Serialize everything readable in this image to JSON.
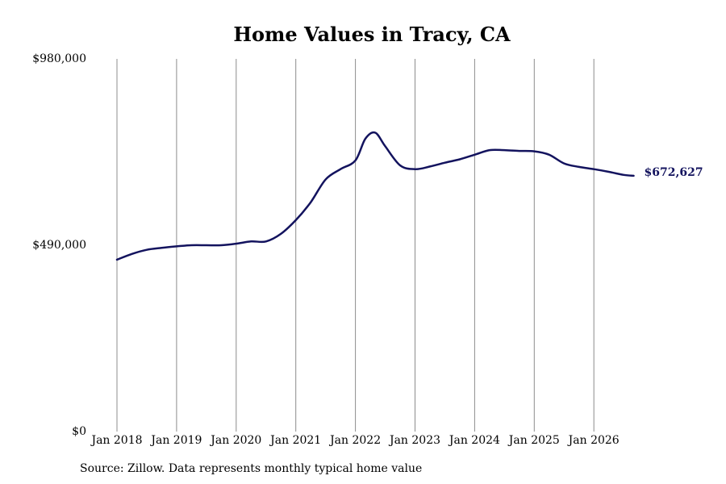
{
  "chart_data": {
    "type": "line",
    "title": "Home Values in Tracy, CA",
    "xlabel": "",
    "ylabel": "",
    "ylim": [
      0,
      980000
    ],
    "y_ticks": [
      0,
      490000,
      980000
    ],
    "y_tick_labels": [
      "$0",
      "$490,000",
      "$980,000"
    ],
    "x_ticks": [
      "2018-01",
      "2019-01",
      "2020-01",
      "2021-01",
      "2022-01",
      "2023-01",
      "2024-01",
      "2025-01",
      "2026-01"
    ],
    "x_tick_labels": [
      "Jan 2018",
      "Jan 2019",
      "Jan 2020",
      "Jan 2021",
      "Jan 2022",
      "Jan 2023",
      "Jan 2024",
      "Jan 2025",
      "Jan 2026"
    ],
    "grid": "vertical",
    "line_color": "#13135e",
    "end_label": "$672,627",
    "series": [
      {
        "x": [
          "2018-01",
          "2018-04",
          "2018-07",
          "2018-10",
          "2019-01",
          "2019-04",
          "2019-07",
          "2019-10",
          "2020-01",
          "2020-04",
          "2020-07",
          "2020-10",
          "2021-01",
          "2021-04",
          "2021-07",
          "2021-10",
          "2022-01",
          "2022-03",
          "2022-05",
          "2022-07",
          "2022-10",
          "2023-01",
          "2023-04",
          "2023-07",
          "2023-10",
          "2024-01",
          "2024-04",
          "2024-07",
          "2024-10",
          "2025-01",
          "2025-04",
          "2025-07",
          "2025-10",
          "2026-01",
          "2026-04",
          "2026-07",
          "2026-09"
        ],
        "values": [
          452000,
          467000,
          478000,
          483000,
          487000,
          490000,
          490000,
          490000,
          494000,
          500000,
          500000,
          520000,
          556000,
          603000,
          663000,
          690000,
          713000,
          770000,
          786000,
          750000,
          700000,
          690000,
          697000,
          707000,
          716000,
          728000,
          740000,
          740000,
          738000,
          737000,
          728000,
          705000,
          696000,
          690000,
          683000,
          675000,
          672627
        ]
      }
    ]
  },
  "source": "Source: Zillow. Data represents monthly typical home value"
}
